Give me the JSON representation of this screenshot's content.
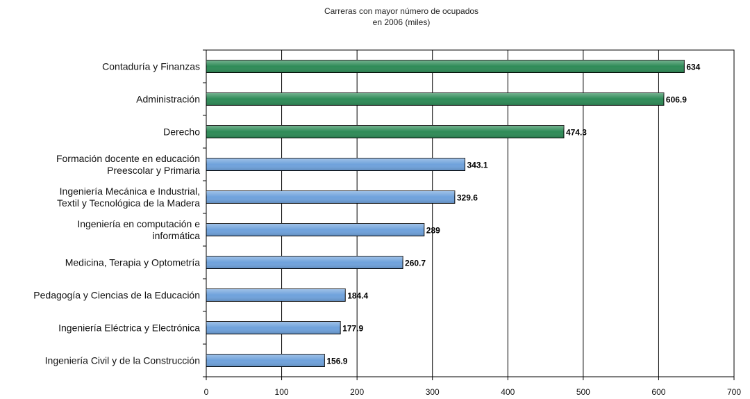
{
  "chart_data": {
    "type": "bar",
    "orientation": "horizontal",
    "title_lines": [
      "Carreras con mayor número de ocupados",
      "en 2006 (miles)"
    ],
    "xlabel": "",
    "ylabel": "",
    "xlim": [
      0,
      700
    ],
    "xticks": [
      0,
      100,
      200,
      300,
      400,
      500,
      600,
      700
    ],
    "grid": "vertical",
    "legend": "none",
    "categories": [
      [
        "Contaduría y Finanzas"
      ],
      [
        "Administración"
      ],
      [
        "Derecho"
      ],
      [
        "Formación docente en educación",
        "Preescolar y Primaria"
      ],
      [
        "Ingeniería Mecánica e Industrial,",
        "Textil y Tecnológica de la Madera"
      ],
      [
        "Ingeniería en computación e",
        "informática"
      ],
      [
        "Medicina, Terapia y Optometría"
      ],
      [
        "Pedagogía y Ciencias de la Educación"
      ],
      [
        "Ingeniería Eléctrica y Electrónica"
      ],
      [
        "Ingeniería Civil y de la Construcción"
      ]
    ],
    "values": [
      634,
      606.9,
      474.3,
      343.1,
      329.6,
      289,
      260.7,
      184.4,
      177.9,
      156.9
    ],
    "value_labels": [
      "634",
      "606.9",
      "474.3",
      "343.1",
      "329.6",
      "289",
      "260.7",
      "184.4",
      "177.9",
      "156.9"
    ],
    "colors": [
      "#2e8b57",
      "#2e8b57",
      "#2e8b57",
      "#6fa2dc",
      "#6fa2dc",
      "#6fa2dc",
      "#6fa2dc",
      "#6fa2dc",
      "#6fa2dc",
      "#6fa2dc"
    ]
  }
}
